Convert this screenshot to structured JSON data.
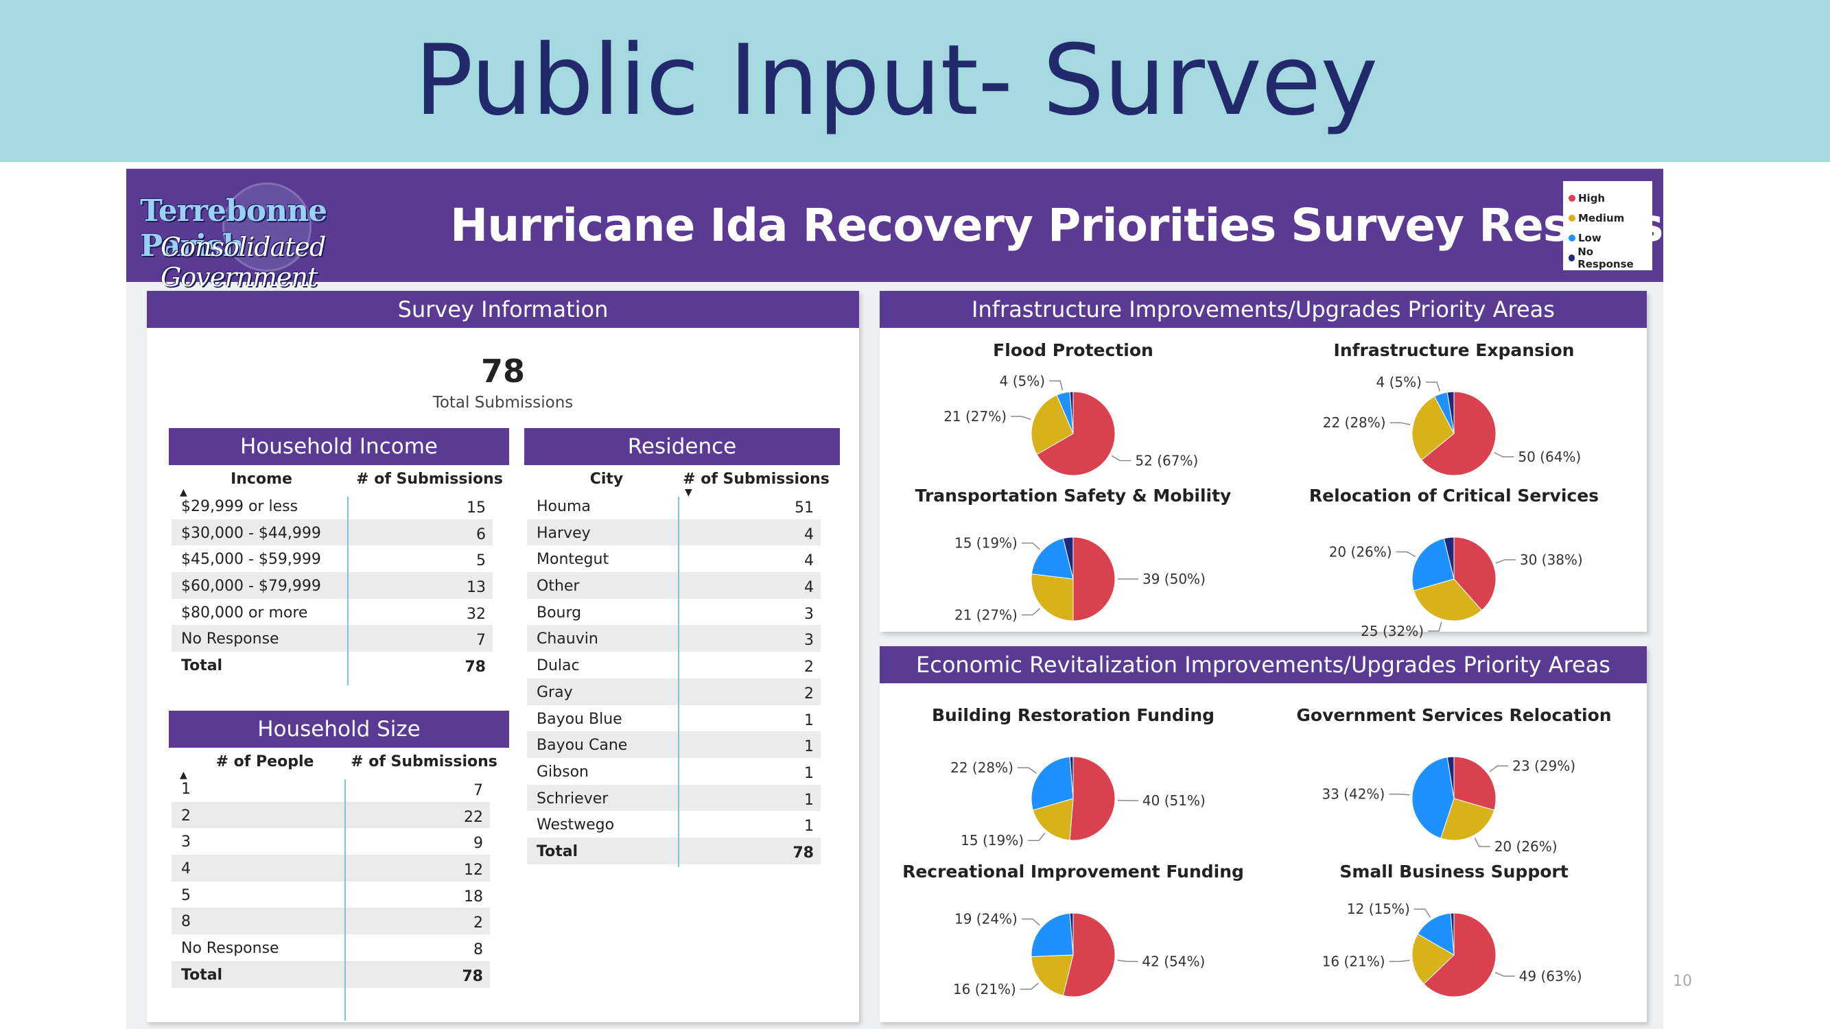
{
  "slide": {
    "title": "Public Input- Survey",
    "page_number": "10"
  },
  "banner": {
    "logo_line1": "Terrebonne Parish",
    "logo_line2": "Consolidated Government",
    "title": "Hurricane Ida Recovery Priorities Survey Results"
  },
  "legend": [
    {
      "label": "High",
      "color": "#d9414e"
    },
    {
      "label": "Medium",
      "color": "#d7b21a"
    },
    {
      "label": "Low",
      "color": "#1e90ff"
    },
    {
      "label": "No Response",
      "color": "#1e2a78"
    }
  ],
  "survey_info": {
    "title": "Survey Information",
    "total_value": "78",
    "total_label": "Total Submissions"
  },
  "household_income": {
    "title": "Household Income",
    "col1": "Income",
    "col2": "# of Submissions",
    "rows": [
      {
        "label": "$29,999 or less",
        "value": "15"
      },
      {
        "label": "$30,000 - $44,999",
        "value": "6"
      },
      {
        "label": "$45,000 - $59,999",
        "value": "5"
      },
      {
        "label": "$60,000 - $79,999",
        "value": "13"
      },
      {
        "label": "$80,000 or more",
        "value": "32"
      },
      {
        "label": "No Response",
        "value": "7"
      },
      {
        "label": "Total",
        "value": "78",
        "total": true
      }
    ]
  },
  "household_size": {
    "title": "Household Size",
    "col1": "# of People",
    "col2": "# of Submissions",
    "rows": [
      {
        "label": "1",
        "value": "7"
      },
      {
        "label": "2",
        "value": "22"
      },
      {
        "label": "3",
        "value": "9"
      },
      {
        "label": "4",
        "value": "12"
      },
      {
        "label": "5",
        "value": "18"
      },
      {
        "label": "8",
        "value": "2"
      },
      {
        "label": "No Response",
        "value": "8"
      },
      {
        "label": "Total",
        "value": "78",
        "total": true
      }
    ]
  },
  "residence": {
    "title": "Residence",
    "col1": "City",
    "col2": "# of Submissions",
    "rows": [
      {
        "label": "Houma",
        "value": "51"
      },
      {
        "label": "Harvey",
        "value": "4"
      },
      {
        "label": "Montegut",
        "value": "4"
      },
      {
        "label": "Other",
        "value": "4"
      },
      {
        "label": "Bourg",
        "value": "3"
      },
      {
        "label": "Chauvin",
        "value": "3"
      },
      {
        "label": "Dulac",
        "value": "2"
      },
      {
        "label": "Gray",
        "value": "2"
      },
      {
        "label": "Bayou Blue",
        "value": "1"
      },
      {
        "label": "Bayou Cane",
        "value": "1"
      },
      {
        "label": "Gibson",
        "value": "1"
      },
      {
        "label": "Schriever",
        "value": "1"
      },
      {
        "label": "Westwego",
        "value": "1"
      },
      {
        "label": "Total",
        "value": "78",
        "total": true
      }
    ]
  },
  "infrastructure_panel": {
    "title": "Infrastructure Improvements/Upgrades Priority Areas"
  },
  "economic_panel": {
    "title": "Economic Revitalization Improvements/Upgrades Priority Areas"
  },
  "chart_data": [
    {
      "type": "pie",
      "title": "Flood Protection",
      "series": [
        {
          "name": "High",
          "value": 52,
          "label": "52 (67%)"
        },
        {
          "name": "Medium",
          "value": 21,
          "label": "21 (27%)"
        },
        {
          "name": "Low",
          "value": 4,
          "label": "4 (5%)"
        },
        {
          "name": "No Response",
          "value": 1,
          "label": ""
        }
      ]
    },
    {
      "type": "pie",
      "title": "Infrastructure Expansion",
      "series": [
        {
          "name": "High",
          "value": 50,
          "label": "50 (64%)"
        },
        {
          "name": "Medium",
          "value": 22,
          "label": "22 (28%)"
        },
        {
          "name": "Low",
          "value": 4,
          "label": "4 (5%)"
        },
        {
          "name": "No Response",
          "value": 2,
          "label": ""
        }
      ]
    },
    {
      "type": "pie",
      "title": "Transportation Safety & Mobility",
      "series": [
        {
          "name": "High",
          "value": 39,
          "label": "39 (50%)"
        },
        {
          "name": "Medium",
          "value": 21,
          "label": "21 (27%)"
        },
        {
          "name": "Low",
          "value": 15,
          "label": "15 (19%)"
        },
        {
          "name": "No Response",
          "value": 3,
          "label": ""
        }
      ]
    },
    {
      "type": "pie",
      "title": "Relocation of Critical Services",
      "series": [
        {
          "name": "High",
          "value": 30,
          "label": "30 (38%)"
        },
        {
          "name": "Medium",
          "value": 25,
          "label": "25 (32%)"
        },
        {
          "name": "Low",
          "value": 20,
          "label": "20 (26%)"
        },
        {
          "name": "No Response",
          "value": 3,
          "label": ""
        }
      ]
    },
    {
      "type": "pie",
      "title": "Building Restoration Funding",
      "series": [
        {
          "name": "High",
          "value": 40,
          "label": "40 (51%)"
        },
        {
          "name": "Medium",
          "value": 15,
          "label": "15 (19%)"
        },
        {
          "name": "Low",
          "value": 22,
          "label": "22 (28%)"
        },
        {
          "name": "No Response",
          "value": 1,
          "label": ""
        }
      ]
    },
    {
      "type": "pie",
      "title": "Government Services Relocation",
      "series": [
        {
          "name": "High",
          "value": 23,
          "label": "23 (29%)"
        },
        {
          "name": "Medium",
          "value": 20,
          "label": "20 (26%)"
        },
        {
          "name": "Low",
          "value": 33,
          "label": "33 (42%)"
        },
        {
          "name": "No Response",
          "value": 2,
          "label": ""
        }
      ]
    },
    {
      "type": "pie",
      "title": "Recreational Improvement Funding",
      "series": [
        {
          "name": "High",
          "value": 42,
          "label": "42 (54%)"
        },
        {
          "name": "Medium",
          "value": 16,
          "label": "16 (21%)"
        },
        {
          "name": "Low",
          "value": 19,
          "label": "19 (24%)"
        },
        {
          "name": "No Response",
          "value": 1,
          "label": ""
        }
      ]
    },
    {
      "type": "pie",
      "title": "Small Business Support",
      "series": [
        {
          "name": "High",
          "value": 49,
          "label": "49 (63%)"
        },
        {
          "name": "Medium",
          "value": 16,
          "label": "16 (21%)"
        },
        {
          "name": "Low",
          "value": 12,
          "label": "12 (15%)"
        },
        {
          "name": "No Response",
          "value": 1,
          "label": ""
        }
      ]
    }
  ]
}
